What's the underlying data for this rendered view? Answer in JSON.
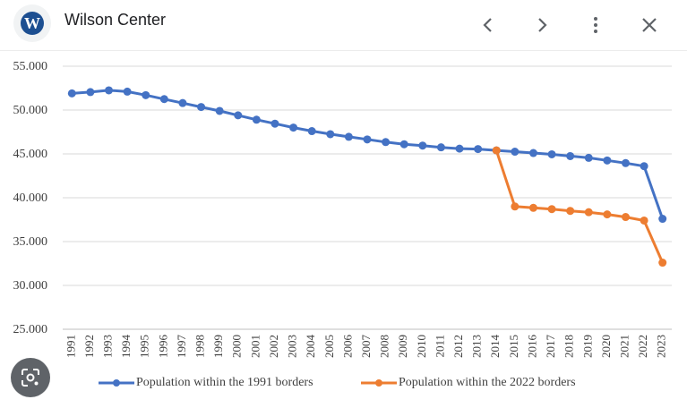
{
  "app": {
    "title": "Wilson Center",
    "logo_letter": "W"
  },
  "toolbar": {
    "back_icon": "chevron-left-icon",
    "forward_icon": "chevron-right-icon",
    "more_icon": "more-vert-icon",
    "close_icon": "close-icon"
  },
  "lens": {
    "icon": "lens-icon"
  },
  "colors": {
    "series1": "#4472c4",
    "series2": "#ed7d31",
    "grid": "#d9d9d9",
    "axis_text": "#404040",
    "brand": "#1d4f91"
  },
  "chart_data": {
    "type": "line",
    "x": [
      "1991",
      "1992",
      "1993",
      "1994",
      "1995",
      "1996",
      "1997",
      "1998",
      "1999",
      "2000",
      "2001",
      "2002",
      "2003",
      "2004",
      "2005",
      "2006",
      "2007",
      "2008",
      "2009",
      "2010",
      "2011",
      "2012",
      "2013",
      "2014",
      "2015",
      "2016",
      "2017",
      "2018",
      "2019",
      "2020",
      "2021",
      "2022",
      "2023"
    ],
    "ylim": [
      25000,
      55000
    ],
    "yticks": [
      25000,
      30000,
      35000,
      40000,
      45000,
      50000,
      55000
    ],
    "ytick_labels": [
      "25.000",
      "30.000",
      "35.000",
      "40.000",
      "45.000",
      "50.000",
      "55.000"
    ],
    "grid": true,
    "legend_position": "bottom",
    "series": [
      {
        "name": "Population within the 1991 borders",
        "color": "#4472c4",
        "values": [
          51900,
          52050,
          52250,
          52100,
          51700,
          51250,
          50800,
          50350,
          49900,
          49400,
          48900,
          48450,
          48000,
          47600,
          47250,
          46950,
          46650,
          46350,
          46100,
          45950,
          45750,
          45600,
          45550,
          45400,
          45250,
          45100,
          44950,
          44750,
          44550,
          44250,
          43950,
          43600,
          37600
        ]
      },
      {
        "name": "Population within the 2022 borders",
        "color": "#ed7d31",
        "values": [
          null,
          null,
          null,
          null,
          null,
          null,
          null,
          null,
          null,
          null,
          null,
          null,
          null,
          null,
          null,
          null,
          null,
          null,
          null,
          null,
          null,
          null,
          null,
          45400,
          39000,
          38850,
          38700,
          38500,
          38350,
          38100,
          37800,
          37400,
          32600
        ]
      }
    ]
  }
}
